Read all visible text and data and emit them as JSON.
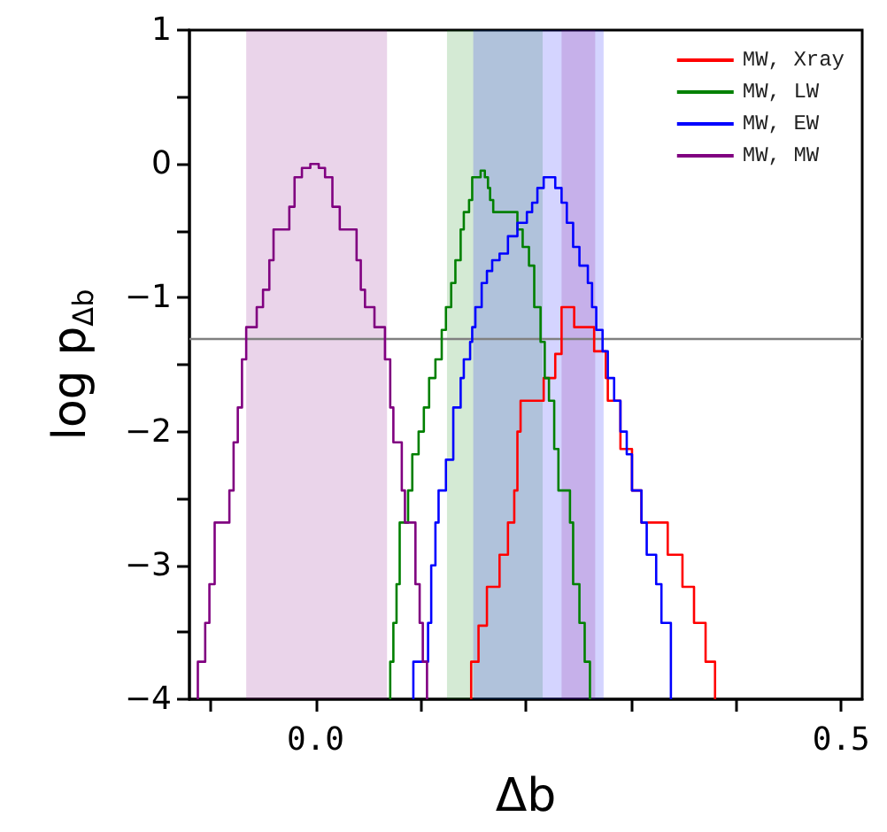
{
  "chart_data": {
    "type": "step",
    "xlabel": "Δb",
    "ylabel": "log p$_{Δb}$",
    "xlim": [
      -0.12,
      0.52
    ],
    "xticks": [
      {
        "value": -0.1,
        "label": null
      },
      {
        "value": 0,
        "label": "0.0"
      },
      {
        "value": 0.1,
        "label": null
      },
      {
        "value": 0.2,
        "label": null
      },
      {
        "value": 0.3,
        "label": null
      },
      {
        "value": 0.4,
        "label": null
      },
      {
        "value": 0.5,
        "label": "0.5"
      }
    ],
    "ylim": [
      -4,
      1
    ],
    "yticks": [
      -4,
      {
        "value": -3.5,
        "label": null
      },
      -3,
      {
        "value": -2.5,
        "label": null
      },
      -2,
      {
        "value": -1.5,
        "label": null
      },
      -1,
      {
        "value": -0.5,
        "label": null
      },
      0,
      {
        "value": 0.5,
        "label": null
      },
      1
    ],
    "legend": "top right",
    "grid": false,
    "marker": "none",
    "line_style": "solid",
    "ref_lines": [
      {
        "axis": "y",
        "value": -1.3,
        "color": "#808080"
      }
    ],
    "bands": [
      {
        "axis": "x",
        "from": -0.066,
        "to": 0.068,
        "color": "#800080"
      },
      {
        "axis": "x",
        "from": 0.125,
        "to": 0.216,
        "color": "#008000"
      },
      {
        "axis": "x",
        "from": 0.15,
        "to": 0.274,
        "color": "#0000ff"
      },
      {
        "axis": "x",
        "from": 0.234,
        "to": 0.266,
        "color": "#800080"
      }
    ],
    "series": [
      {
        "name": "MW, Xray",
        "color": "#ff0000",
        "x": [
          0.148,
          0.148,
          0.155,
          0.163,
          0.175,
          0.183,
          0.189,
          0.192,
          0.195,
          0.217,
          0.228,
          0.234,
          0.246,
          0.265,
          0.276,
          0.278,
          0.29,
          0.301,
          0.31,
          0.335,
          0.349,
          0.36,
          0.371,
          0.38
        ],
        "values": [
          -4,
          -3.72,
          -3.45,
          -3.16,
          -2.92,
          -2.68,
          -2.44,
          -2.0,
          -1.77,
          -1.6,
          -1.42,
          -1.07,
          -1.22,
          -1.4,
          -1.6,
          -1.77,
          -2.13,
          -2.44,
          -2.68,
          -2.92,
          -3.16,
          -3.43,
          -3.72,
          -4
        ]
      },
      {
        "name": "MW, LW",
        "color": "#008000",
        "x": [
          0.071,
          0.071,
          0.074,
          0.077,
          0.08,
          0.088,
          0.092,
          0.098,
          0.103,
          0.108,
          0.114,
          0.12,
          0.124,
          0.129,
          0.133,
          0.138,
          0.141,
          0.146,
          0.149,
          0.157,
          0.161,
          0.164,
          0.166,
          0.169,
          0.192,
          0.197,
          0.203,
          0.208,
          0.214,
          0.218,
          0.222,
          0.227,
          0.231,
          0.242,
          0.245,
          0.251,
          0.256,
          0.261
        ],
        "values": [
          -4,
          -3.72,
          -3.43,
          -3.14,
          -2.68,
          -2.44,
          -2.17,
          -2.0,
          -1.82,
          -1.6,
          -1.46,
          -1.24,
          -1.07,
          -0.89,
          -0.72,
          -0.49,
          -0.36,
          -0.27,
          -0.1,
          -0.05,
          -0.1,
          -0.18,
          -0.27,
          -0.36,
          -0.49,
          -0.62,
          -0.76,
          -1.07,
          -1.33,
          -1.6,
          -1.77,
          -2.13,
          -2.44,
          -2.68,
          -3.14,
          -3.43,
          -3.72,
          -4
        ]
      },
      {
        "name": "MW, EW",
        "color": "#0000ff",
        "x": [
          0.093,
          0.093,
          0.107,
          0.11,
          0.114,
          0.117,
          0.124,
          0.131,
          0.138,
          0.141,
          0.147,
          0.149,
          0.152,
          0.158,
          0.163,
          0.168,
          0.175,
          0.183,
          0.192,
          0.201,
          0.206,
          0.211,
          0.217,
          0.228,
          0.234,
          0.239,
          0.245,
          0.251,
          0.259,
          0.263,
          0.267,
          0.273,
          0.278,
          0.284,
          0.29,
          0.296,
          0.301,
          0.31,
          0.315,
          0.324,
          0.329,
          0.338
        ],
        "values": [
          -4,
          -3.72,
          -3.43,
          -3.0,
          -2.68,
          -2.44,
          -2.21,
          -1.82,
          -1.6,
          -1.46,
          -1.33,
          -1.22,
          -1.07,
          -0.89,
          -0.8,
          -0.72,
          -0.67,
          -0.54,
          -0.44,
          -0.36,
          -0.29,
          -0.18,
          -0.1,
          -0.18,
          -0.29,
          -0.44,
          -0.62,
          -0.76,
          -0.89,
          -1.07,
          -1.24,
          -1.4,
          -1.6,
          -1.77,
          -2.0,
          -2.17,
          -2.44,
          -2.68,
          -2.92,
          -3.14,
          -3.43,
          -4
        ]
      },
      {
        "name": "MW, MW",
        "color": "#800080",
        "x": [
          -0.112,
          -0.112,
          -0.105,
          -0.101,
          -0.096,
          -0.082,
          -0.078,
          -0.074,
          -0.07,
          -0.066,
          -0.056,
          -0.05,
          -0.044,
          -0.04,
          -0.025,
          -0.02,
          -0.013,
          -0.005,
          0.003,
          0.009,
          0.016,
          0.023,
          0.039,
          0.043,
          0.047,
          0.056,
          0.066,
          0.071,
          0.074,
          0.082,
          0.085,
          0.095,
          0.099,
          0.102,
          0.106
        ],
        "values": [
          -4,
          -3.72,
          -3.43,
          -3.14,
          -2.68,
          -2.44,
          -2.08,
          -1.82,
          -1.46,
          -1.22,
          -1.07,
          -0.94,
          -0.72,
          -0.49,
          -0.32,
          -0.1,
          -0.03,
          0.0,
          -0.03,
          -0.1,
          -0.32,
          -0.49,
          -0.72,
          -0.94,
          -1.07,
          -1.22,
          -1.46,
          -1.82,
          -2.08,
          -2.44,
          -2.68,
          -3.14,
          -3.43,
          -3.72,
          -4
        ]
      }
    ]
  }
}
